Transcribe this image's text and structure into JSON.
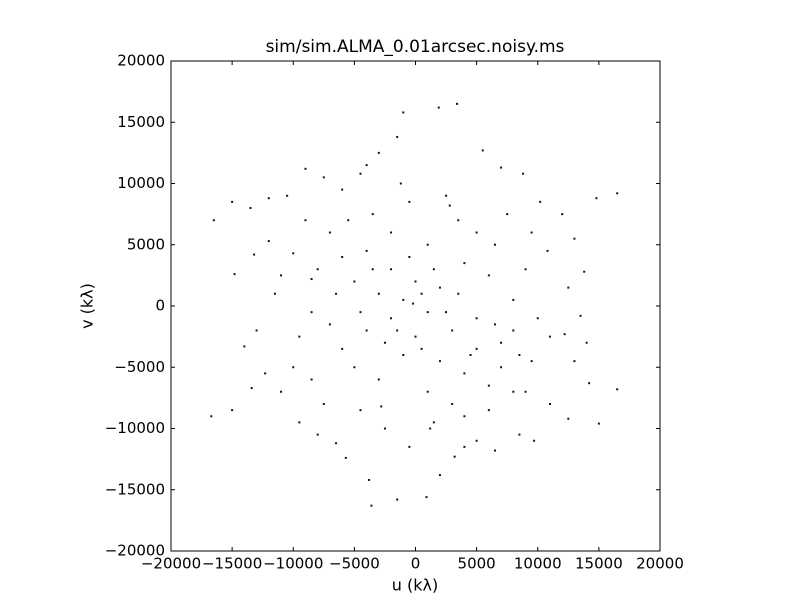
{
  "chart_data": {
    "type": "scatter",
    "title": "sim/sim.ALMA_0.01arcsec.noisy.ms",
    "x_label": "u (kλ)",
    "y_label": "v (kλ)",
    "color": "#400000",
    "xlim": [
      -20000,
      20000
    ],
    "ylim": [
      -20000,
      20000
    ],
    "xticks": [
      {
        "value": -20000,
        "label": "−20000"
      },
      {
        "value": -15000,
        "label": "−15000"
      },
      {
        "value": -10000,
        "label": "−10000"
      },
      {
        "value": -5000,
        "label": "−5000"
      },
      0,
      5000,
      10000,
      15000,
      20000
    ],
    "yticks": [
      {
        "value": -20000,
        "label": "−20000"
      },
      {
        "value": -15000,
        "label": "−15000"
      },
      {
        "value": -10000,
        "label": "−10000"
      },
      {
        "value": -5000,
        "label": "−5000"
      },
      0,
      5000,
      10000,
      15000,
      20000
    ],
    "x": [
      -16500,
      -15000,
      -13500,
      -12000,
      -10500,
      -9000,
      -7500,
      -6000,
      -4500,
      -3000,
      -1500,
      -1000,
      1900,
      3400,
      5500,
      7000,
      8800,
      10200,
      12000,
      14800,
      16500,
      -14800,
      -13200,
      -12000,
      -10000,
      -8500,
      -11500,
      -13000,
      -14000,
      -12300,
      -13400,
      -15000,
      -16700,
      -11000,
      -9500,
      -8000,
      -6500,
      -5700,
      -3800,
      -3600,
      -1500,
      900,
      2000,
      3200,
      5000,
      6500,
      8500,
      9700,
      11000,
      12500,
      15000,
      16500,
      14200,
      13000,
      14000,
      12200,
      13500,
      12500,
      13800,
      10800,
      9500,
      13000,
      -6000,
      -5000,
      -4000,
      -3000,
      -2000,
      -1000,
      0,
      1000,
      2000,
      3000,
      4000,
      5000,
      6000,
      7000,
      8000,
      -7000,
      -6000,
      -5000,
      -4000,
      -3000,
      -2000,
      -1000,
      0,
      1000,
      2000,
      3000,
      4000,
      5000,
      6000,
      7000,
      8000,
      -8000,
      -7000,
      -5500,
      -3500,
      -2000,
      -500,
      1000,
      2500,
      3500,
      5000,
      6500,
      7500,
      9000,
      10000,
      9500,
      -9500,
      -10000,
      -8500,
      -7500,
      -4500,
      -2500,
      -500,
      1500,
      4000,
      6000,
      8000,
      -200,
      500,
      -1500,
      1500,
      -2500,
      2500,
      -3500,
      3500,
      -4500,
      4500,
      -500,
      500,
      -6500,
      6500,
      -8500,
      8500,
      -11000,
      11000,
      -9000,
      9000,
      -2800,
      2800,
      -1200,
      1200,
      -4000,
      4000
    ],
    "values": [
      7000,
      8500,
      8000,
      8800,
      9000,
      11200,
      10500,
      9500,
      10800,
      12500,
      13800,
      15800,
      16200,
      16500,
      12700,
      11300,
      10800,
      8500,
      7500,
      8800,
      9200,
      2600,
      4200,
      5300,
      4300,
      2200,
      1000,
      -2000,
      -3300,
      -5500,
      -6700,
      -8500,
      -9000,
      -7000,
      -9500,
      -10500,
      -11200,
      -12400,
      -14200,
      -16300,
      -15800,
      -15600,
      -13800,
      -12300,
      -11000,
      -11800,
      -10500,
      -11000,
      -8000,
      -9200,
      -9600,
      -6800,
      -6300,
      -4500,
      -3000,
      -2300,
      -800,
      1500,
      2800,
      4500,
      6000,
      5500,
      4000,
      2000,
      4500,
      1000,
      3000,
      500,
      2000,
      -500,
      1500,
      -2000,
      3500,
      -1000,
      2500,
      -3000,
      500,
      -1500,
      -3500,
      -5000,
      -2000,
      -6000,
      -1000,
      -4000,
      -2500,
      -7000,
      -4500,
      -8000,
      -5500,
      -3500,
      -6500,
      -5000,
      -2000,
      3000,
      6000,
      7000,
      7500,
      6000,
      8500,
      5000,
      9000,
      7000,
      6000,
      5000,
      7500,
      3000,
      -1000,
      -4500,
      -2500,
      -5000,
      -6000,
      -8000,
      -8500,
      -10000,
      -11500,
      -9500,
      -9000,
      -8500,
      -7000,
      200,
      1000,
      -2000,
      3000,
      -3000,
      -500,
      3000,
      1000,
      -500,
      -4000,
      4000,
      -3500,
      1000,
      -1500,
      -500,
      -4000,
      2500,
      -2500,
      7000,
      -7000,
      -8200,
      8200,
      10000,
      -10000,
      11500,
      -11500
    ]
  }
}
